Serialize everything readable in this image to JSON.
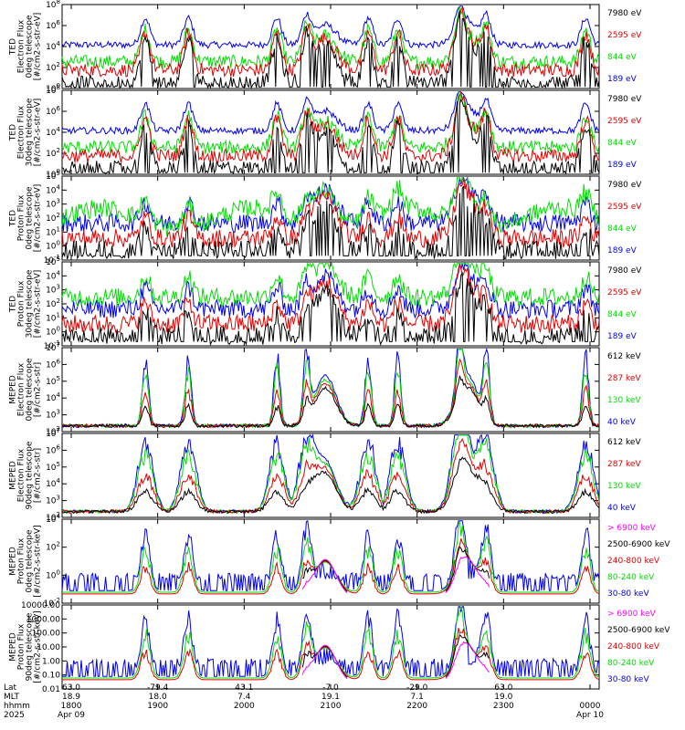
{
  "colors": {
    "black": "#000000",
    "red": "#e00000",
    "green": "#00dd00",
    "blue": "#0000ee",
    "magenta": "#ff00ff",
    "frame": "#000000"
  },
  "chart_data": [
    {
      "type": "line",
      "panel": "ted-e-0",
      "ylabel": [
        "TED",
        "Electron Flux",
        "0deg telescope",
        "[#/cm2-s-str-eV]"
      ],
      "scale": "log",
      "yticks": [
        "10^0",
        "10^2",
        "10^4",
        "10^6",
        "10^8"
      ],
      "series": [
        {
          "name": "7980 eV",
          "color": "black"
        },
        {
          "name": "2595 eV",
          "color": "red"
        },
        {
          "name": "844 eV",
          "color": "green"
        },
        {
          "name": "189 eV",
          "color": "blue"
        }
      ]
    },
    {
      "type": "line",
      "panel": "ted-e-30",
      "ylabel": [
        "TED",
        "Electron Flux",
        "30deg telescope",
        "[#/cm2-s-str-eV]"
      ],
      "scale": "log",
      "yticks": [
        "10^0",
        "10^2",
        "10^4",
        "10^6",
        "10^8"
      ],
      "series": [
        {
          "name": "7980 eV",
          "color": "black"
        },
        {
          "name": "2595 eV",
          "color": "red"
        },
        {
          "name": "844 eV",
          "color": "green"
        },
        {
          "name": "189 eV",
          "color": "blue"
        }
      ]
    },
    {
      "type": "line",
      "panel": "ted-p-0",
      "ylabel": [
        "TED",
        "Proton Flux",
        "0deg telescope",
        "[#/cm2-s-str-eV]"
      ],
      "scale": "log",
      "yticks": [
        "10^-1",
        "10^0",
        "10^1",
        "10^2",
        "10^3",
        "10^4",
        "10^5"
      ],
      "series": [
        {
          "name": "7980 eV",
          "color": "black"
        },
        {
          "name": "2595 eV",
          "color": "red"
        },
        {
          "name": "844 eV",
          "color": "green"
        },
        {
          "name": "189 eV",
          "color": "blue"
        }
      ]
    },
    {
      "type": "line",
      "panel": "ted-p-30",
      "ylabel": [
        "TED",
        "Proton Flux",
        "30deg telescope",
        "[#/cm2-s-str-eV]"
      ],
      "scale": "log",
      "yticks": [
        "10^-1",
        "10^0",
        "10^1",
        "10^2",
        "10^3",
        "10^4",
        "10^5"
      ],
      "series": [
        {
          "name": "7980 eV",
          "color": "black"
        },
        {
          "name": "2595 eV",
          "color": "red"
        },
        {
          "name": "844 eV",
          "color": "green"
        },
        {
          "name": "189 eV",
          "color": "blue"
        }
      ]
    },
    {
      "type": "line",
      "panel": "meped-e-0",
      "ylabel": [
        "MEPED",
        "Electron Flux",
        "0deg telescope",
        "[#/cm2-s-str]"
      ],
      "scale": "log",
      "yticks": [
        "10^2",
        "10^3",
        "10^4",
        "10^5",
        "10^6",
        "10^7"
      ],
      "series": [
        {
          "name": "612 keV",
          "color": "black"
        },
        {
          "name": "287 keV",
          "color": "red"
        },
        {
          "name": "130 keV",
          "color": "green"
        },
        {
          "name": "40 keV",
          "color": "blue"
        }
      ]
    },
    {
      "type": "line",
      "panel": "meped-e-90",
      "ylabel": [
        "MEPED",
        "Electron Flux",
        "90deg telescope",
        "[#/cm2-s-str]"
      ],
      "scale": "log",
      "yticks": [
        "10^2",
        "10^3",
        "10^4",
        "10^5",
        "10^6",
        "10^7"
      ],
      "series": [
        {
          "name": "612 keV",
          "color": "black"
        },
        {
          "name": "287 keV",
          "color": "red"
        },
        {
          "name": "130 keV",
          "color": "green"
        },
        {
          "name": "40 keV",
          "color": "blue"
        }
      ]
    },
    {
      "type": "line",
      "panel": "meped-p-0",
      "ylabel": [
        "MEPED",
        "Proton Flux",
        "0deg telescope",
        "[#/cm2-s-str-keV]"
      ],
      "scale": "log",
      "yticks": [
        "10^-2",
        "10^0",
        "10^2",
        "10^4"
      ],
      "series": [
        {
          "name": "> 6900 keV",
          "color": "magenta"
        },
        {
          "name": "2500-6900 keV",
          "color": "black"
        },
        {
          "name": "240-800 keV",
          "color": "red"
        },
        {
          "name": "80-240 keV",
          "color": "green"
        },
        {
          "name": "30-80 keV",
          "color": "blue"
        }
      ]
    },
    {
      "type": "line",
      "panel": "meped-p-90",
      "ylabel": [
        "MEPED",
        "Proton Flux",
        "90deg telescope",
        "[#/cm2-s-str-keV]"
      ],
      "scale": "log",
      "yticks": [
        "0.01",
        "0.10",
        "1.00",
        "10.00",
        "100.00",
        "1000.00",
        "10000.00"
      ],
      "series": [
        {
          "name": "> 6900 keV",
          "color": "magenta"
        },
        {
          "name": "2500-6900 keV",
          "color": "black"
        },
        {
          "name": "240-800 keV",
          "color": "red"
        },
        {
          "name": "80-240 keV",
          "color": "green"
        },
        {
          "name": "30-80 keV",
          "color": "blue"
        }
      ]
    }
  ],
  "xaxis": {
    "row_labels": [
      "Lat",
      "MLT",
      "hhmm",
      "2025"
    ],
    "lat": [
      "63.0",
      "-79.4",
      "43.1",
      "-7.0",
      "-29.0",
      "63.0"
    ],
    "mlt": [
      "18.9",
      "18.0",
      "7.4",
      "19.1",
      "7.1",
      "19.0"
    ],
    "hhmm": [
      "1800",
      "1900",
      "2000",
      "2100",
      "2200",
      "2300",
      "0000"
    ],
    "date": [
      "Apr 09",
      "Apr 10"
    ]
  }
}
